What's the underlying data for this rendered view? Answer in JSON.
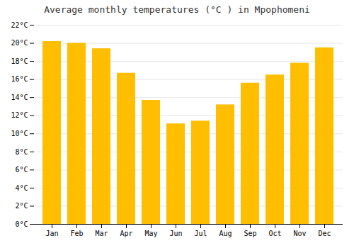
{
  "chart_data": {
    "type": "bar",
    "title": "Average monthly temperatures (°C ) in Mpophomeni",
    "categories": [
      "Jan",
      "Feb",
      "Mar",
      "Apr",
      "May",
      "Jun",
      "Jul",
      "Aug",
      "Sep",
      "Oct",
      "Nov",
      "Dec"
    ],
    "values": [
      20.2,
      20.0,
      19.4,
      16.7,
      13.7,
      11.1,
      11.4,
      13.2,
      15.6,
      16.5,
      17.8,
      19.5
    ],
    "color": "#FFBE00",
    "ylim": [
      0,
      22
    ],
    "yticks": [
      {
        "value": 0,
        "label": "0°C"
      },
      {
        "value": 2,
        "label": "2°C"
      },
      {
        "value": 4,
        "label": "4°C"
      },
      {
        "value": 6,
        "label": "6°C"
      },
      {
        "value": 8,
        "label": "8°C"
      },
      {
        "value": 10,
        "label": "10°C"
      },
      {
        "value": 12,
        "label": "12°C"
      },
      {
        "value": 14,
        "label": "14°C"
      },
      {
        "value": 16,
        "label": "16°C"
      },
      {
        "value": 18,
        "label": "18°C"
      },
      {
        "value": 20,
        "label": "20°C"
      },
      {
        "value": 22,
        "label": "22°C"
      }
    ],
    "grid": true
  }
}
